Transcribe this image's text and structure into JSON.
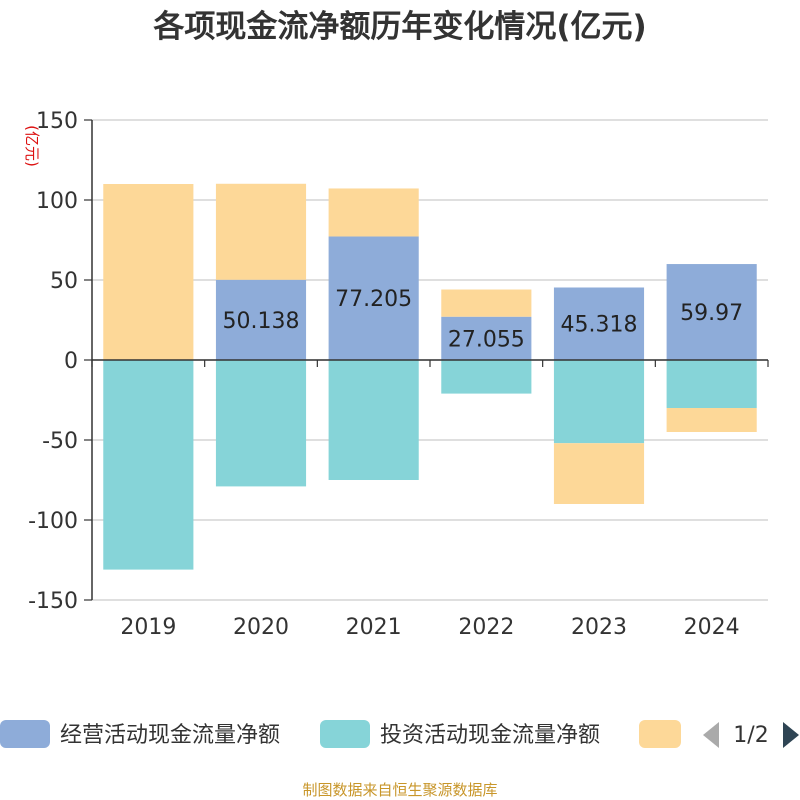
{
  "chart_data": {
    "type": "bar",
    "stacked": true,
    "title": "各项现金流净额历年变化情况(亿元)",
    "y_unit": "(亿元)",
    "ylim": [
      -150,
      150
    ],
    "yticks": [
      150,
      100,
      50,
      0,
      -50,
      -100,
      -150
    ],
    "grid": true,
    "categories": [
      "2019",
      "2020",
      "2021",
      "2022",
      "2023",
      "2024"
    ],
    "series": [
      {
        "name": "经营活动现金流量净额",
        "color": "#8eacd9",
        "values": [
          0,
          50.138,
          77.205,
          27.055,
          45.318,
          59.97
        ],
        "labels": [
          "",
          "50.138",
          "77.205",
          "27.055",
          "45.318",
          "59.97"
        ]
      },
      {
        "name": "投资活动现金流量净额",
        "color": "#86d4d8",
        "values": [
          -131,
          -79,
          -75,
          -21,
          -52,
          -30
        ]
      },
      {
        "name": "",
        "color": "#fdd898",
        "values": [
          110,
          60,
          30,
          17,
          -38,
          -15
        ]
      }
    ],
    "legend_position": "bottom",
    "legend_page": "1/2"
  },
  "source_note": "制图数据来自恒生聚源数据库"
}
